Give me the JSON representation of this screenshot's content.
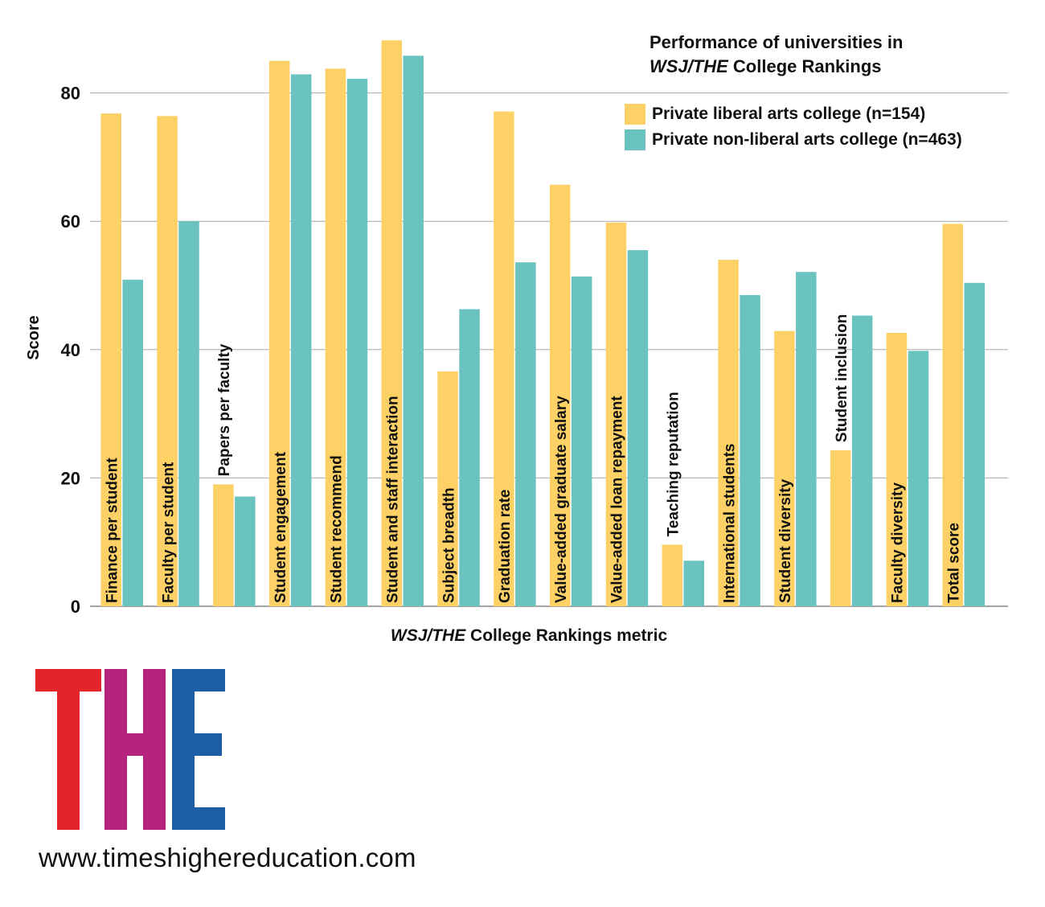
{
  "chart_data": {
    "type": "bar",
    "title_line1": "Performance of universities in",
    "title_line2_italic": "WSJ/THE",
    "title_line2_rest": " College Rankings",
    "xlabel_italic": "WSJ/THE",
    "xlabel_rest": " College Rankings metric",
    "ylabel": "Score",
    "ylim": [
      0,
      90
    ],
    "yticks": [
      "0",
      "20",
      "40",
      "60",
      "80"
    ],
    "grid": true,
    "legend_position": "top-right",
    "categories": [
      "Finance per student",
      "Faculty per student",
      "Papers per faculty",
      "Student engagement",
      "Student recommend",
      "Student and staff interaction",
      "Subject breadth",
      "Graduation rate",
      "Value-added graduate salary",
      "Value-added loan repayment",
      "Teaching reputation",
      "International students",
      "Student diversity",
      "Student inclusion",
      "Faculty diversity",
      "Total score"
    ],
    "series": [
      {
        "name": "Private liberal arts college (n=154)",
        "color": "#fdd166",
        "values": [
          76.8,
          76.4,
          19.0,
          85.0,
          83.8,
          88.2,
          36.6,
          77.1,
          65.7,
          59.8,
          9.6,
          54.0,
          42.9,
          24.3,
          42.6,
          59.6
        ]
      },
      {
        "name": "Private non-liberal arts college (n=463)",
        "color": "#6ac3bf",
        "values": [
          50.9,
          60.0,
          17.1,
          82.9,
          82.2,
          85.8,
          46.3,
          53.6,
          51.4,
          55.5,
          7.1,
          48.5,
          52.1,
          45.3,
          39.8,
          50.4
        ]
      }
    ]
  },
  "logo": {
    "letters": [
      "T",
      "H",
      "E"
    ],
    "colors": [
      "#e3242b",
      "#b5227f",
      "#1b5ea6"
    ]
  },
  "url": "www.timeshighereducation.com"
}
